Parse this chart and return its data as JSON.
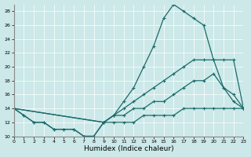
{
  "xlabel": "Humidex (Indice chaleur)",
  "bg_color": "#cce8e8",
  "line_color": "#1a6b6b",
  "xlim": [
    0,
    23
  ],
  "ylim": [
    10,
    29
  ],
  "xticks": [
    0,
    1,
    2,
    3,
    4,
    5,
    6,
    7,
    8,
    9,
    10,
    11,
    12,
    13,
    14,
    15,
    16,
    17,
    18,
    19,
    20,
    21,
    22,
    23
  ],
  "yticks": [
    10,
    12,
    14,
    16,
    18,
    20,
    22,
    24,
    26,
    28
  ],
  "line_big_x": [
    0,
    1,
    2,
    3,
    4,
    5,
    6,
    7,
    8,
    9,
    10,
    11,
    12,
    13,
    14,
    15,
    16,
    17,
    18,
    19,
    20,
    21,
    22,
    23
  ],
  "line_big_y": [
    14,
    13,
    12,
    12,
    11,
    11,
    11,
    10,
    10,
    12,
    13,
    15,
    17,
    20,
    23,
    27,
    29,
    28,
    27,
    26,
    21,
    21,
    21,
    14
  ],
  "line_upper_x": [
    0,
    9,
    10,
    11,
    12,
    13,
    14,
    15,
    16,
    17,
    18,
    19,
    20,
    21,
    22,
    23
  ],
  "line_upper_y": [
    14,
    12,
    13,
    14,
    15,
    16,
    17,
    18,
    19,
    20,
    21,
    21,
    21,
    17,
    16,
    14
  ],
  "line_mid_x": [
    0,
    9,
    10,
    11,
    12,
    13,
    14,
    15,
    16,
    17,
    18,
    19,
    20,
    21,
    22,
    23
  ],
  "line_mid_y": [
    14,
    12,
    13,
    13,
    14,
    14,
    15,
    15,
    16,
    17,
    18,
    18,
    19,
    17,
    15,
    14
  ],
  "line_low_x": [
    0,
    1,
    2,
    3,
    4,
    5,
    6,
    7,
    8,
    9,
    10,
    11,
    12,
    13,
    14,
    15,
    16,
    17,
    18,
    19,
    20,
    21,
    22,
    23
  ],
  "line_low_y": [
    14,
    13,
    12,
    12,
    11,
    11,
    11,
    10,
    10,
    12,
    12,
    12,
    12,
    13,
    13,
    13,
    13,
    14,
    14,
    14,
    14,
    14,
    14,
    14
  ]
}
